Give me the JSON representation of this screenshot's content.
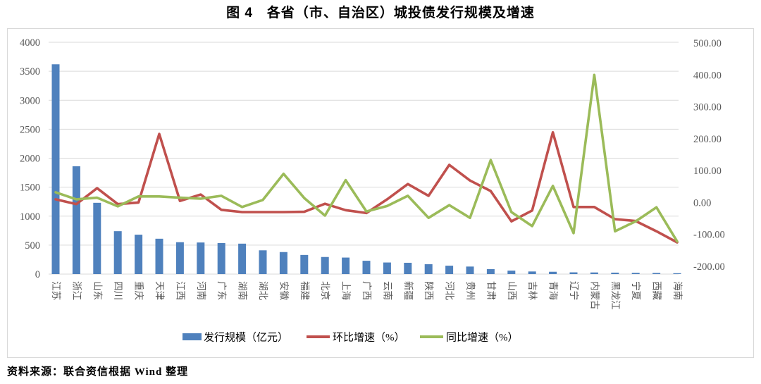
{
  "title": "图 4　各省（市、自治区）城投债发行规模及增速",
  "source_note": "资料来源：联合资信根据 Wind 整理",
  "chart_data": {
    "type": "combo",
    "categories": [
      "江苏",
      "浙江",
      "山东",
      "四川",
      "重庆",
      "天津",
      "江西",
      "河南",
      "广东",
      "湖南",
      "湖北",
      "安徽",
      "福建",
      "北京",
      "上海",
      "广西",
      "云南",
      "新疆",
      "陕西",
      "河北",
      "贵州",
      "甘肃",
      "山西",
      "吉林",
      "青海",
      "辽宁",
      "内蒙古",
      "黑龙江",
      "宁夏",
      "西藏",
      "海南"
    ],
    "series": [
      {
        "name": "发行规模（亿元）",
        "type": "bar",
        "axis": "left",
        "color": "#4f81bd",
        "values": [
          3620,
          1860,
          1230,
          740,
          680,
          610,
          550,
          545,
          535,
          525,
          410,
          380,
          330,
          295,
          285,
          230,
          200,
          195,
          170,
          145,
          130,
          85,
          60,
          45,
          40,
          30,
          28,
          25,
          22,
          20,
          15
        ]
      },
      {
        "name": "环比增速（%）",
        "type": "line",
        "axis": "right",
        "color": "#c0504d",
        "values": [
          10,
          -5,
          45,
          -5,
          0,
          215,
          5,
          25,
          -23,
          -30,
          -30,
          -30,
          -29,
          -4,
          -24,
          -33,
          10,
          58,
          21,
          118,
          69,
          36,
          -59,
          -25,
          220,
          -14,
          -14,
          -52,
          -58,
          -90,
          -125
        ]
      },
      {
        "name": "同比增速（%）",
        "type": "line",
        "axis": "right",
        "color": "#9bbb59",
        "values": [
          32,
          10,
          15,
          -12,
          19,
          19,
          15,
          12,
          21,
          -14,
          8,
          90,
          14,
          -41,
          70,
          -28,
          -11,
          21,
          -48,
          -8,
          -48,
          133,
          -30,
          -74,
          52,
          -96,
          400,
          -90,
          -59,
          -15,
          -122
        ]
      }
    ],
    "left_axis": {
      "min": 0,
      "max": 4000,
      "step": 500,
      "decimals": 0
    },
    "right_axis": {
      "min": -200,
      "max": 500,
      "step": 100,
      "decimals": 2
    },
    "grid": true,
    "legend_position": "bottom",
    "grid_color": "#d9d9d9",
    "tick_color": "#595959",
    "category_label_rotation": 90
  }
}
